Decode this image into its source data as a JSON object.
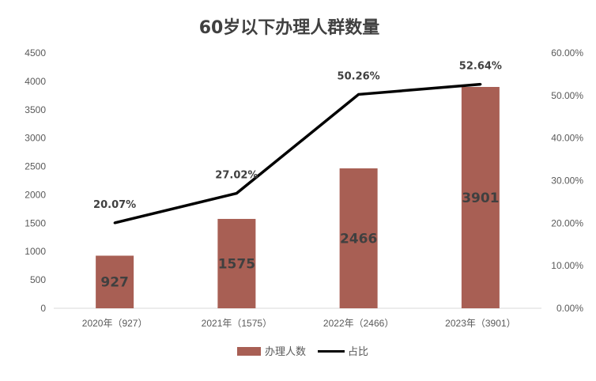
{
  "chart_data": {
    "type": "bar",
    "title": "60岁以下办理人群数量",
    "categories": [
      "2020年（927）",
      "2021年（1575）",
      "2022年（2466）",
      "2023年（3901）"
    ],
    "series": [
      {
        "name": "办理人数",
        "type": "bar",
        "axis": "left",
        "color": "#A85F54",
        "values": [
          927,
          1575,
          2466,
          3901
        ],
        "labels": [
          "927",
          "1575",
          "2466",
          "3901"
        ]
      },
      {
        "name": "占比",
        "type": "line",
        "axis": "right",
        "color": "#000000",
        "values": [
          0.2007,
          0.2702,
          0.5026,
          0.5264
        ],
        "labels": [
          "20.07%",
          "27.02%",
          "50.26%",
          "52.64%"
        ]
      }
    ],
    "y_left": {
      "min": 0,
      "max": 4500,
      "ticks": [
        "0",
        "500",
        "1000",
        "1500",
        "2000",
        "2500",
        "3000",
        "3500",
        "4000",
        "4500"
      ]
    },
    "y_right": {
      "min": 0,
      "max": 0.6,
      "ticks": [
        "0.00%",
        "10.00%",
        "20.00%",
        "30.00%",
        "40.00%",
        "50.00%",
        "60.00%"
      ]
    },
    "grid": false,
    "legend": "bottom"
  }
}
